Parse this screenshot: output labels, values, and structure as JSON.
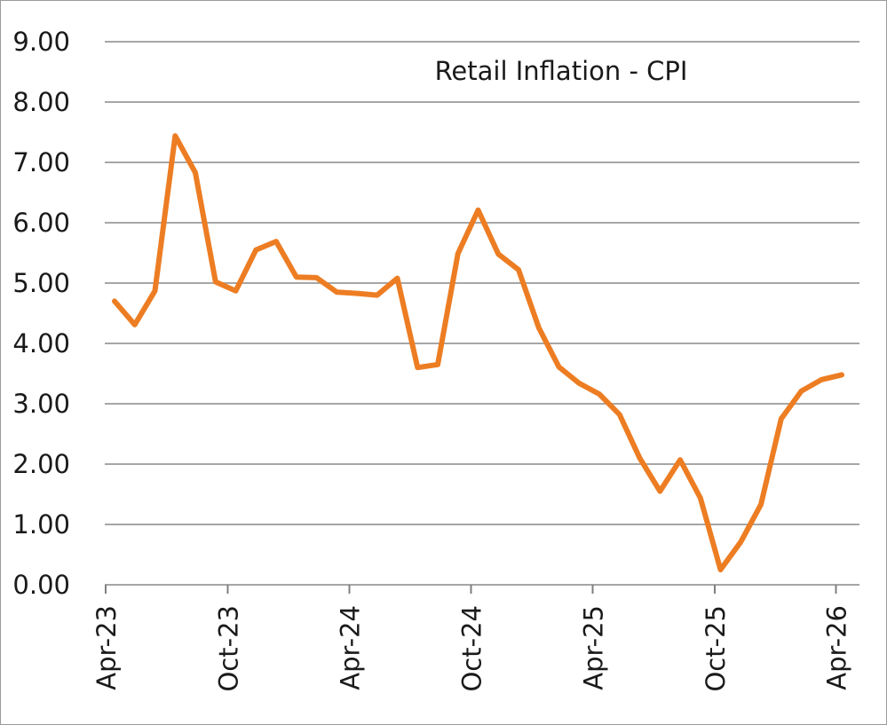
{
  "chart_data": {
    "type": "line",
    "title": "Retail Inflation - CPI",
    "xlabel": "",
    "ylabel": "",
    "ylim": [
      0,
      9
    ],
    "y_ticks": [
      "0.00",
      "1.00",
      "2.00",
      "3.00",
      "4.00",
      "5.00",
      "6.00",
      "7.00",
      "8.00",
      "9.00"
    ],
    "x_tick_labels": [
      "Apr-23",
      "Oct-23",
      "Apr-24",
      "Oct-24",
      "Apr-25",
      "Oct-25",
      "Apr-26"
    ],
    "grid": true,
    "legend": "none",
    "line_color": "#ED7D23",
    "grid_color": "#a6a6a6",
    "x": [
      "Apr-23",
      "May-23",
      "Jun-23",
      "Jul-23",
      "Aug-23",
      "Sep-23",
      "Oct-23",
      "Nov-23",
      "Dec-23",
      "Jan-24",
      "Feb-24",
      "Mar-24",
      "Apr-24",
      "May-24",
      "Jun-24",
      "Jul-24",
      "Aug-24",
      "Sep-24",
      "Oct-24",
      "Nov-24",
      "Dec-24",
      "Jan-25",
      "Feb-25",
      "Mar-25",
      "Apr-25",
      "May-25",
      "Jun-25",
      "Jul-25",
      "Aug-25",
      "Sep-25",
      "Oct-25",
      "Nov-25",
      "Dec-25",
      "Jan-26",
      "Feb-26",
      "Mar-26",
      "Apr-26"
    ],
    "series": [
      {
        "values": [
          4.7,
          4.31,
          4.87,
          7.44,
          6.83,
          5.02,
          4.87,
          5.55,
          5.69,
          5.1,
          5.09,
          4.85,
          4.83,
          4.8,
          5.08,
          3.6,
          3.65,
          5.49,
          6.21,
          5.48,
          5.22,
          4.26,
          3.61,
          3.34,
          3.16,
          2.82,
          2.1,
          1.55,
          2.07,
          1.44,
          0.25,
          0.71,
          1.33,
          2.75,
          3.21,
          3.4,
          3.48
        ]
      }
    ]
  }
}
